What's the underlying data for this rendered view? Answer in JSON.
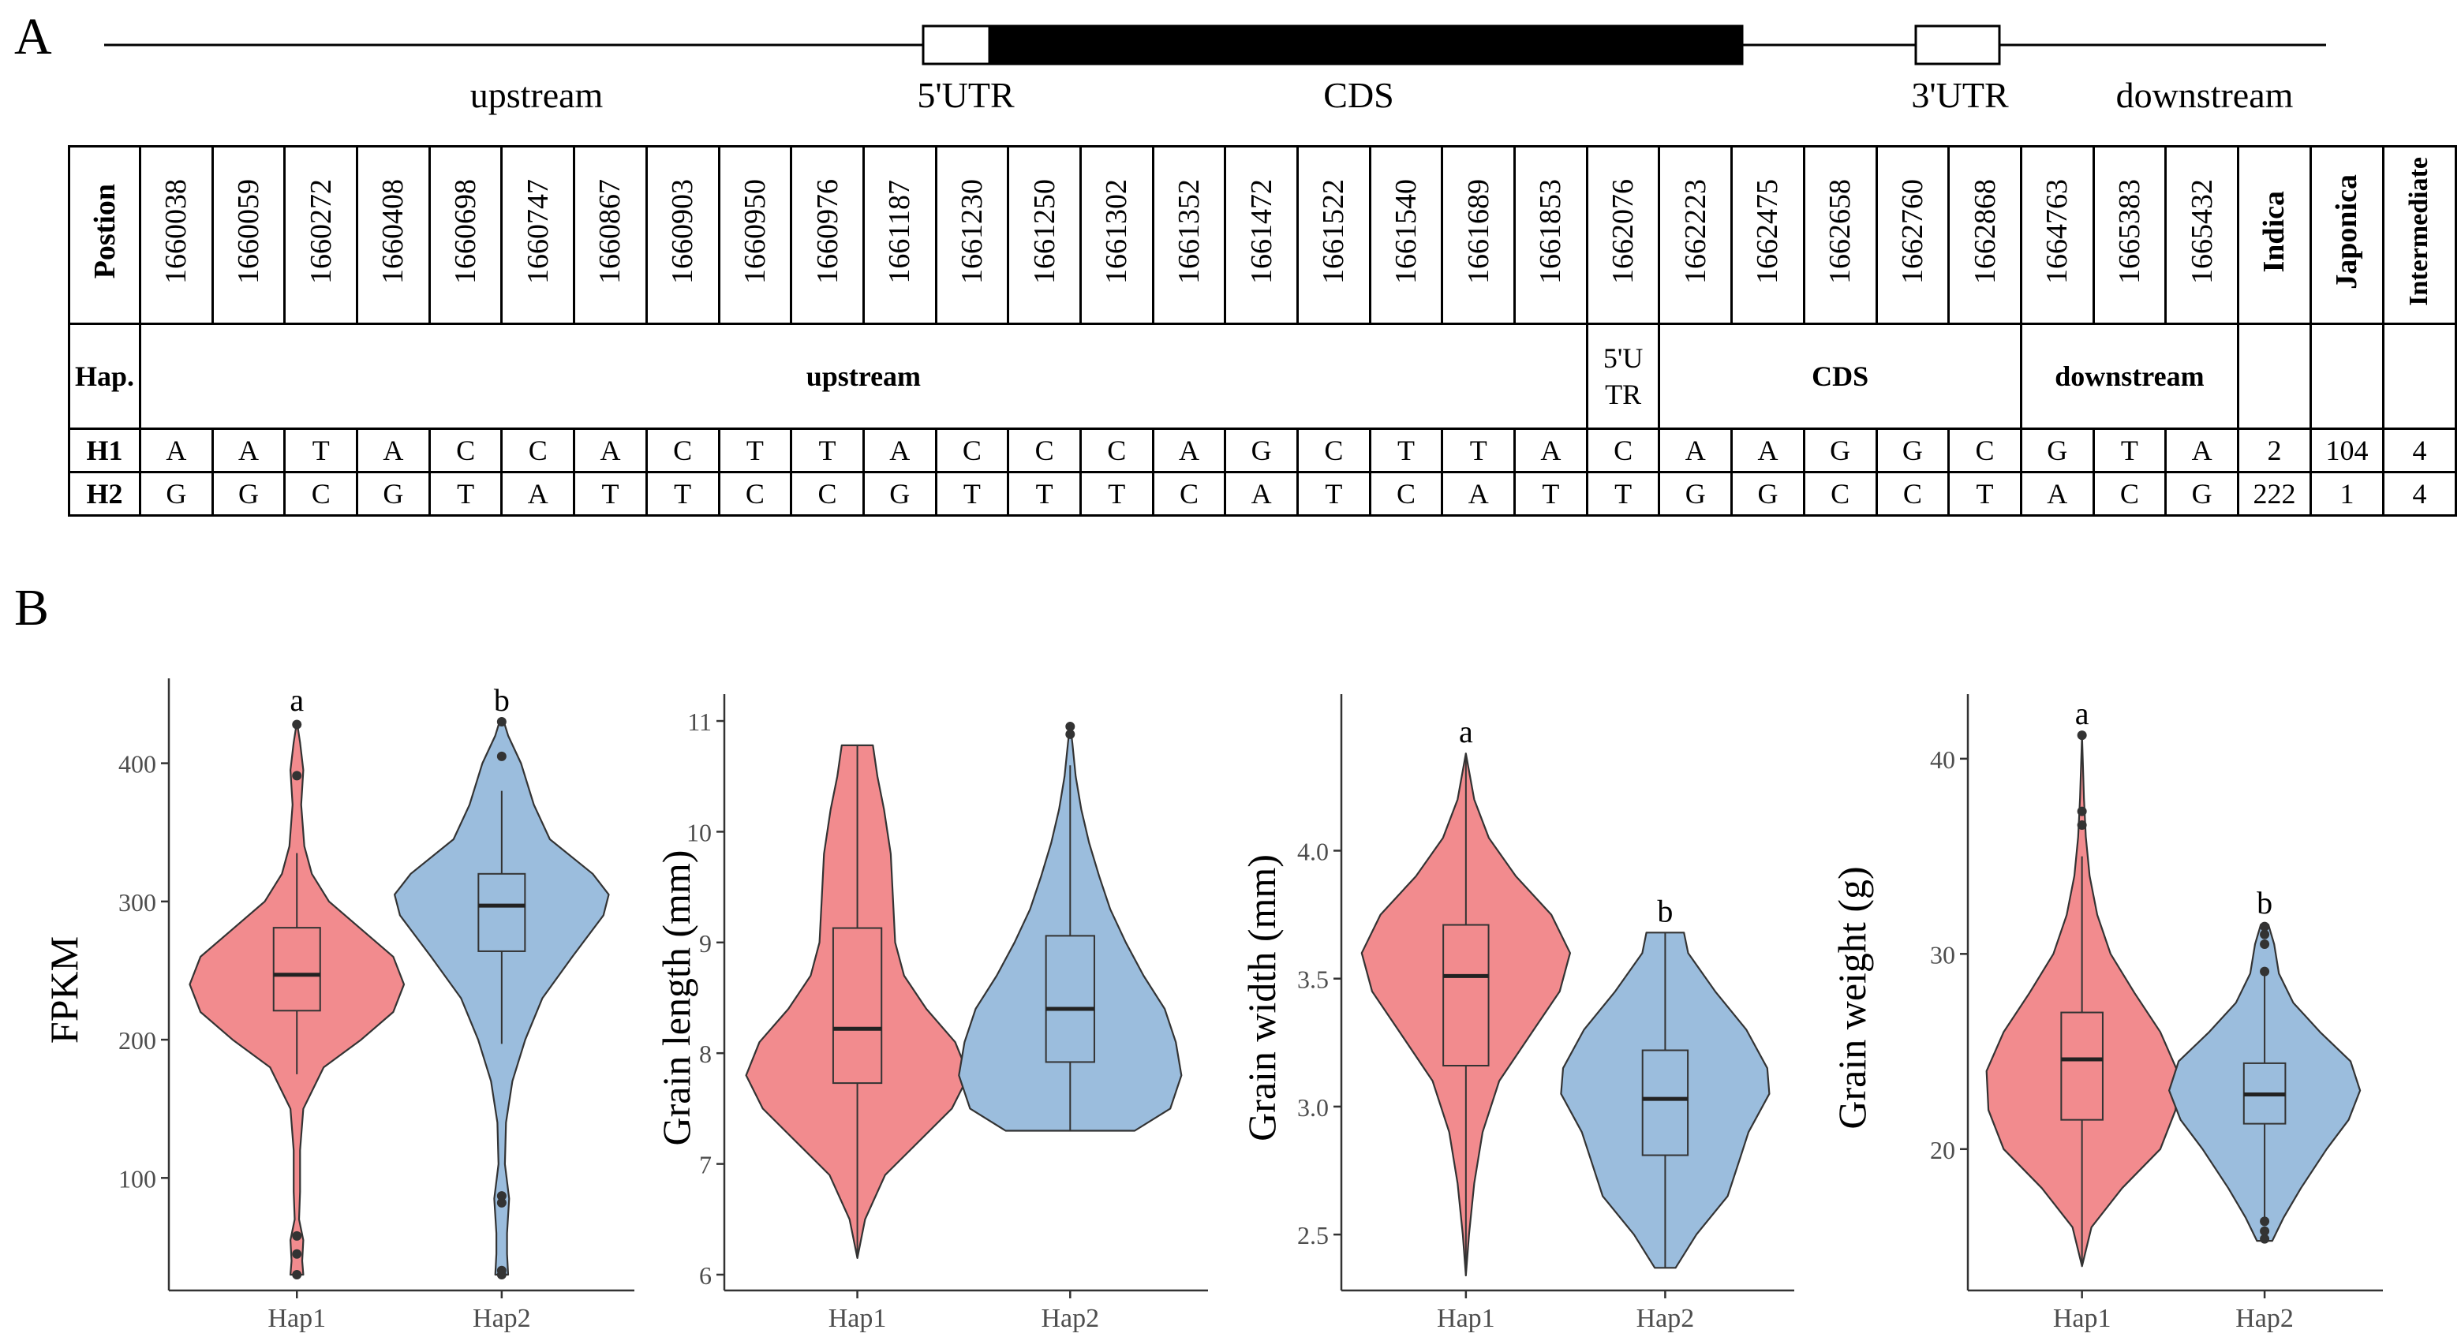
{
  "panels": {
    "a": "A",
    "b": "B"
  },
  "gene_structure": {
    "labels": [
      "upstream",
      "5'UTR",
      "CDS",
      "3'UTR",
      "downstream"
    ]
  },
  "table": {
    "position_header": "Postion",
    "positions": [
      "1660038",
      "1660059",
      "1660272",
      "1660408",
      "1660698",
      "1660747",
      "1660867",
      "1660903",
      "1660950",
      "1660976",
      "1661187",
      "1661230",
      "1661250",
      "1661302",
      "1661352",
      "1661472",
      "1661522",
      "1661540",
      "1661689",
      "1661853",
      "1662076",
      "1662223",
      "1662475",
      "1662658",
      "1662760",
      "1662868",
      "1664763",
      "1665383",
      "1665432"
    ],
    "group_headers": [
      "Indica",
      "Japonica",
      "Intermediate"
    ],
    "hap_header": "Hap.",
    "regions": [
      "upstream",
      "5'U TR",
      "CDS",
      "downstream"
    ],
    "haplotypes": [
      {
        "name": "H1",
        "alleles": [
          "A",
          "A",
          "T",
          "A",
          "C",
          "C",
          "A",
          "C",
          "T",
          "T",
          "A",
          "C",
          "C",
          "C",
          "A",
          "G",
          "C",
          "T",
          "T",
          "A",
          "C",
          "A",
          "A",
          "G",
          "G",
          "C",
          "G",
          "T",
          "A"
        ],
        "counts": [
          "2",
          "104",
          "4"
        ]
      },
      {
        "name": "H2",
        "alleles": [
          "G",
          "G",
          "C",
          "G",
          "T",
          "A",
          "T",
          "T",
          "C",
          "C",
          "G",
          "T",
          "T",
          "T",
          "C",
          "A",
          "T",
          "C",
          "A",
          "T",
          "T",
          "G",
          "G",
          "C",
          "C",
          "T",
          "A",
          "C",
          "G"
        ],
        "counts": [
          "222",
          "1",
          "4"
        ]
      }
    ]
  },
  "colors": {
    "hap1": "#F28B8E",
    "hap2": "#9BBDDD",
    "line": "#333333",
    "axis_text": "#4D4D4D"
  },
  "chart_data": [
    {
      "type": "violin",
      "ylabel": "FPKM",
      "categories": [
        "Hap1",
        "Hap2"
      ],
      "ylim": [
        22,
        450
      ],
      "yticks": [
        100,
        200,
        300,
        400
      ],
      "significance": [
        "a",
        "b"
      ],
      "series": [
        {
          "name": "Hap1",
          "min": 30,
          "max": 430,
          "q1": 221,
          "median": 247,
          "q3": 281,
          "whisker_low": 175,
          "whisker_high": 335,
          "outliers": [
            30,
            45,
            58,
            391,
            428
          ],
          "density": [
            [
              30,
              0.06
            ],
            [
              40,
              0.05
            ],
            [
              55,
              0.06
            ],
            [
              70,
              0.02
            ],
            [
              90,
              0.03
            ],
            [
              120,
              0.03
            ],
            [
              150,
              0.06
            ],
            [
              180,
              0.25
            ],
            [
              200,
              0.6
            ],
            [
              220,
              0.9
            ],
            [
              240,
              1.0
            ],
            [
              260,
              0.9
            ],
            [
              280,
              0.6
            ],
            [
              300,
              0.3
            ],
            [
              320,
              0.14
            ],
            [
              340,
              0.07
            ],
            [
              370,
              0.04
            ],
            [
              395,
              0.06
            ],
            [
              415,
              0.03
            ],
            [
              430,
              0.0
            ]
          ]
        },
        {
          "name": "Hap2",
          "min": 30,
          "max": 430,
          "q1": 264,
          "median": 297,
          "q3": 320,
          "whisker_low": 197,
          "whisker_high": 380,
          "outliers": [
            30,
            33,
            82,
            87,
            405,
            430
          ],
          "density": [
            [
              30,
              0.06
            ],
            [
              45,
              0.05
            ],
            [
              60,
              0.05
            ],
            [
              85,
              0.07
            ],
            [
              110,
              0.03
            ],
            [
              140,
              0.04
            ],
            [
              170,
              0.1
            ],
            [
              200,
              0.22
            ],
            [
              230,
              0.38
            ],
            [
              260,
              0.66
            ],
            [
              290,
              0.95
            ],
            [
              305,
              1.0
            ],
            [
              320,
              0.85
            ],
            [
              345,
              0.45
            ],
            [
              370,
              0.3
            ],
            [
              400,
              0.18
            ],
            [
              420,
              0.06
            ],
            [
              430,
              0.02
            ]
          ]
        }
      ]
    },
    {
      "type": "violin",
      "ylabel": "Grain length (mm)",
      "categories": [
        "Hap1",
        "Hap2"
      ],
      "ylim": [
        5.9,
        11.1
      ],
      "yticks": [
        6,
        7,
        8,
        9,
        10,
        11
      ],
      "significance": [
        "",
        ""
      ],
      "series": [
        {
          "name": "Hap1",
          "min": 6.15,
          "max": 10.78,
          "q1": 7.73,
          "median": 8.22,
          "q3": 9.13,
          "whisker_low": 6.15,
          "whisker_high": 10.78,
          "outliers": [],
          "density": [
            [
              6.15,
              0.0
            ],
            [
              6.5,
              0.07
            ],
            [
              6.9,
              0.25
            ],
            [
              7.2,
              0.55
            ],
            [
              7.5,
              0.85
            ],
            [
              7.8,
              1.0
            ],
            [
              8.1,
              0.88
            ],
            [
              8.4,
              0.62
            ],
            [
              8.7,
              0.42
            ],
            [
              9.0,
              0.34
            ],
            [
              9.4,
              0.32
            ],
            [
              9.8,
              0.3
            ],
            [
              10.2,
              0.24
            ],
            [
              10.5,
              0.18
            ],
            [
              10.78,
              0.14
            ]
          ]
        },
        {
          "name": "Hap2",
          "min": 7.3,
          "max": 10.97,
          "q1": 7.92,
          "median": 8.4,
          "q3": 9.06,
          "whisker_low": 7.3,
          "whisker_high": 10.6,
          "outliers": [
            10.88,
            10.95
          ],
          "density": [
            [
              7.3,
              0.58
            ],
            [
              7.5,
              0.9
            ],
            [
              7.8,
              1.0
            ],
            [
              8.1,
              0.95
            ],
            [
              8.4,
              0.85
            ],
            [
              8.7,
              0.66
            ],
            [
              9.0,
              0.5
            ],
            [
              9.3,
              0.36
            ],
            [
              9.6,
              0.26
            ],
            [
              9.9,
              0.17
            ],
            [
              10.2,
              0.1
            ],
            [
              10.5,
              0.05
            ],
            [
              10.8,
              0.02
            ],
            [
              10.97,
              0.0
            ]
          ]
        }
      ]
    },
    {
      "type": "violin",
      "ylabel": "Grain width (mm)",
      "categories": [
        "Hap1",
        "Hap2"
      ],
      "ylim": [
        2.3,
        4.55
      ],
      "yticks": [
        2.5,
        3.0,
        3.5,
        4.0
      ],
      "yticklabels": [
        "2.5",
        "3.0",
        "3.5",
        "4.0"
      ],
      "significance": [
        "a",
        "b"
      ],
      "series": [
        {
          "name": "Hap1",
          "min": 2.34,
          "max": 4.38,
          "q1": 3.16,
          "median": 3.51,
          "q3": 3.71,
          "whisker_low": 2.34,
          "whisker_high": 4.38,
          "outliers": [],
          "density": [
            [
              2.34,
              0.0
            ],
            [
              2.5,
              0.03
            ],
            [
              2.7,
              0.08
            ],
            [
              2.9,
              0.16
            ],
            [
              3.1,
              0.32
            ],
            [
              3.3,
              0.65
            ],
            [
              3.45,
              0.9
            ],
            [
              3.6,
              1.0
            ],
            [
              3.75,
              0.82
            ],
            [
              3.9,
              0.48
            ],
            [
              4.05,
              0.22
            ],
            [
              4.2,
              0.08
            ],
            [
              4.38,
              0.0
            ]
          ]
        },
        {
          "name": "Hap2",
          "min": 2.37,
          "max": 3.68,
          "q1": 2.81,
          "median": 3.03,
          "q3": 3.22,
          "whisker_low": 2.37,
          "whisker_high": 3.68,
          "outliers": [],
          "density": [
            [
              2.37,
              0.1
            ],
            [
              2.5,
              0.3
            ],
            [
              2.65,
              0.6
            ],
            [
              2.8,
              0.72
            ],
            [
              2.9,
              0.8
            ],
            [
              3.05,
              1.0
            ],
            [
              3.15,
              0.98
            ],
            [
              3.3,
              0.78
            ],
            [
              3.45,
              0.48
            ],
            [
              3.6,
              0.22
            ],
            [
              3.68,
              0.18
            ]
          ]
        }
      ]
    },
    {
      "type": "violin",
      "ylabel": "Grain weight (g)",
      "categories": [
        "Hap1",
        "Hap2"
      ],
      "ylim": [
        13,
        42.5
      ],
      "yticks": [
        20,
        30,
        40
      ],
      "significance": [
        "a",
        "b"
      ],
      "series": [
        {
          "name": "Hap1",
          "min": 14,
          "max": 41.2,
          "q1": 21.5,
          "median": 24.6,
          "q3": 27.0,
          "whisker_low": 14,
          "whisker_high": 35,
          "outliers": [
            36.6,
            37.3,
            41.2
          ],
          "density": [
            [
              14,
              0.0
            ],
            [
              16,
              0.1
            ],
            [
              18,
              0.42
            ],
            [
              20,
              0.82
            ],
            [
              22,
              0.98
            ],
            [
              24,
              1.0
            ],
            [
              26,
              0.82
            ],
            [
              28,
              0.55
            ],
            [
              30,
              0.3
            ],
            [
              32,
              0.16
            ],
            [
              34,
              0.08
            ],
            [
              36,
              0.04
            ],
            [
              38,
              0.02
            ],
            [
              41.2,
              0.0
            ]
          ]
        },
        {
          "name": "Hap2",
          "min": 15.3,
          "max": 31.5,
          "q1": 21.3,
          "median": 22.8,
          "q3": 24.4,
          "whisker_low": 16.5,
          "whisker_high": 29.0,
          "outliers": [
            15.4,
            15.8,
            16.3,
            29.1,
            30.5,
            31.0,
            31.4
          ],
          "density": [
            [
              15.3,
              0.08
            ],
            [
              16.5,
              0.2
            ],
            [
              18,
              0.38
            ],
            [
              20,
              0.65
            ],
            [
              21.5,
              0.88
            ],
            [
              23,
              1.0
            ],
            [
              24.5,
              0.9
            ],
            [
              26,
              0.58
            ],
            [
              27.5,
              0.3
            ],
            [
              29,
              0.15
            ],
            [
              30.5,
              0.1
            ],
            [
              31.5,
              0.04
            ]
          ]
        }
      ]
    }
  ]
}
